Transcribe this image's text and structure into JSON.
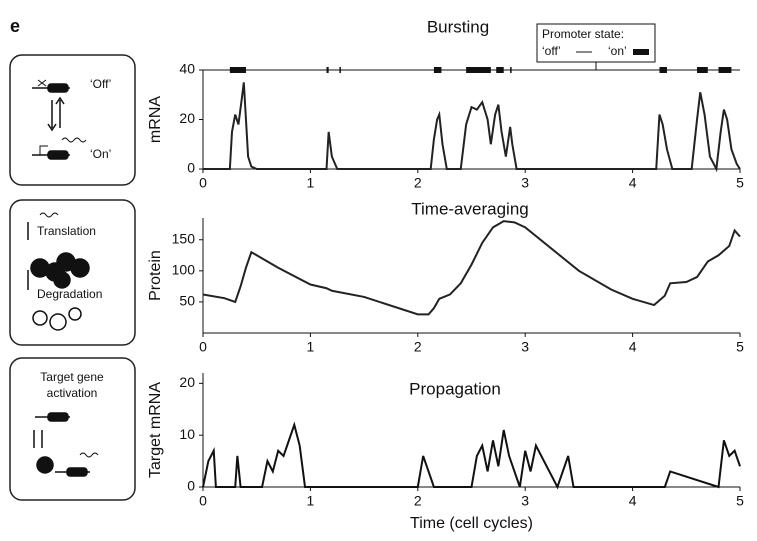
{
  "panel_label": "e",
  "diagrams": [
    {
      "labels": [
        "‘Off’",
        "‘On’"
      ]
    },
    {
      "labels": [
        "Translation",
        "Degradation"
      ]
    },
    {
      "labels": [
        "Target gene",
        "activation"
      ]
    }
  ],
  "chart_data": [
    {
      "type": "line",
      "title": "Bursting",
      "ylabel": "mRNA",
      "x": [
        0,
        0.25,
        0.27,
        0.3,
        0.33,
        0.36,
        0.38,
        0.4,
        0.42,
        0.45,
        0.5,
        1.15,
        1.17,
        1.2,
        1.25,
        2.12,
        2.15,
        2.18,
        2.2,
        2.23,
        2.27,
        2.4,
        2.45,
        2.5,
        2.55,
        2.6,
        2.65,
        2.68,
        2.72,
        2.75,
        2.78,
        2.82,
        2.86,
        2.88,
        2.92,
        4.22,
        4.25,
        4.28,
        4.32,
        4.37,
        4.55,
        4.6,
        4.63,
        4.67,
        4.72,
        4.78,
        4.82,
        4.85,
        4.88,
        4.92,
        4.97,
        5
      ],
      "series": [
        {
          "name": "mRNA",
          "color": "#222222",
          "values": [
            0,
            0,
            15,
            22,
            18,
            28,
            35,
            20,
            5,
            1,
            0,
            0,
            15,
            5,
            0,
            0,
            12,
            20,
            22,
            10,
            0,
            0,
            18,
            25,
            24,
            27,
            20,
            10,
            22,
            26,
            15,
            5,
            17,
            10,
            0,
            0,
            22,
            18,
            8,
            0,
            0,
            20,
            31,
            22,
            5,
            0,
            15,
            24,
            20,
            8,
            2,
            0
          ]
        }
      ],
      "xlim": [
        0,
        5
      ],
      "xticks": [
        0,
        1,
        2,
        3,
        4,
        5
      ],
      "ylim": [
        0,
        40
      ],
      "yticks": [
        0,
        20,
        40
      ],
      "promoter_state": {
        "title": "Promoter state:",
        "off_label": "‘off’",
        "on_label": "‘on’",
        "level": 40,
        "on_intervals": [
          [
            0.25,
            0.4
          ],
          [
            1.15,
            1.17
          ],
          [
            1.27,
            1.28
          ],
          [
            2.15,
            2.22
          ],
          [
            2.45,
            2.68
          ],
          [
            2.73,
            2.8
          ],
          [
            2.86,
            2.87
          ],
          [
            4.25,
            4.32
          ],
          [
            4.6,
            4.7
          ],
          [
            4.8,
            4.92
          ]
        ]
      }
    },
    {
      "type": "line",
      "title": "Time-averaging",
      "ylabel": "Protein",
      "x": [
        0,
        0.2,
        0.3,
        0.35,
        0.4,
        0.45,
        0.5,
        0.7,
        1.0,
        1.15,
        1.2,
        1.5,
        2.0,
        2.1,
        2.15,
        2.2,
        2.3,
        2.4,
        2.5,
        2.6,
        2.7,
        2.8,
        2.9,
        3.0,
        3.5,
        3.8,
        4.0,
        4.2,
        4.3,
        4.35,
        4.5,
        4.6,
        4.7,
        4.8,
        4.9,
        4.95,
        5.0
      ],
      "series": [
        {
          "name": "Protein",
          "color": "#222222",
          "values": [
            62,
            56,
            50,
            75,
            105,
            130,
            125,
            105,
            78,
            72,
            68,
            58,
            30,
            30,
            40,
            55,
            62,
            80,
            110,
            145,
            170,
            180,
            178,
            170,
            100,
            70,
            55,
            45,
            60,
            80,
            82,
            90,
            115,
            125,
            140,
            165,
            155
          ]
        }
      ],
      "xlim": [
        0,
        5
      ],
      "xticks": [
        0,
        1,
        2,
        3,
        4,
        5
      ],
      "ylim": [
        0,
        185
      ],
      "yticks": [
        50,
        100,
        150
      ]
    },
    {
      "type": "line",
      "title": "Propagation",
      "ylabel": "Target mRNA",
      "xlabel": "Time (cell cycles)",
      "x": [
        0,
        0.05,
        0.1,
        0.12,
        0.15,
        0.3,
        0.32,
        0.35,
        0.55,
        0.6,
        0.65,
        0.7,
        0.75,
        0.8,
        0.85,
        0.9,
        0.95,
        1.0,
        2.0,
        2.05,
        2.1,
        2.15,
        2.5,
        2.55,
        2.6,
        2.65,
        2.7,
        2.75,
        2.8,
        2.85,
        2.9,
        2.95,
        3.0,
        3.05,
        3.1,
        3.2,
        3.3,
        3.4,
        3.45,
        4.3,
        4.35,
        4.8,
        4.85,
        4.9,
        4.95,
        5.0
      ],
      "series": [
        {
          "name": "Target mRNA",
          "color": "#111111",
          "values": [
            0,
            5,
            7,
            0,
            0,
            0,
            6,
            0,
            0,
            5,
            3,
            7,
            6,
            9,
            12,
            8,
            0,
            0,
            0,
            6,
            3,
            0,
            0,
            6,
            8,
            3,
            9,
            4,
            11,
            6,
            3,
            0,
            7,
            3,
            8,
            4,
            0,
            6,
            0,
            0,
            3,
            0,
            9,
            6,
            7,
            4
          ]
        }
      ],
      "xlim": [
        0,
        5
      ],
      "xticks": [
        0,
        1,
        2,
        3,
        4,
        5
      ],
      "ylim": [
        0,
        22
      ],
      "yticks": [
        0,
        10,
        20
      ]
    }
  ]
}
